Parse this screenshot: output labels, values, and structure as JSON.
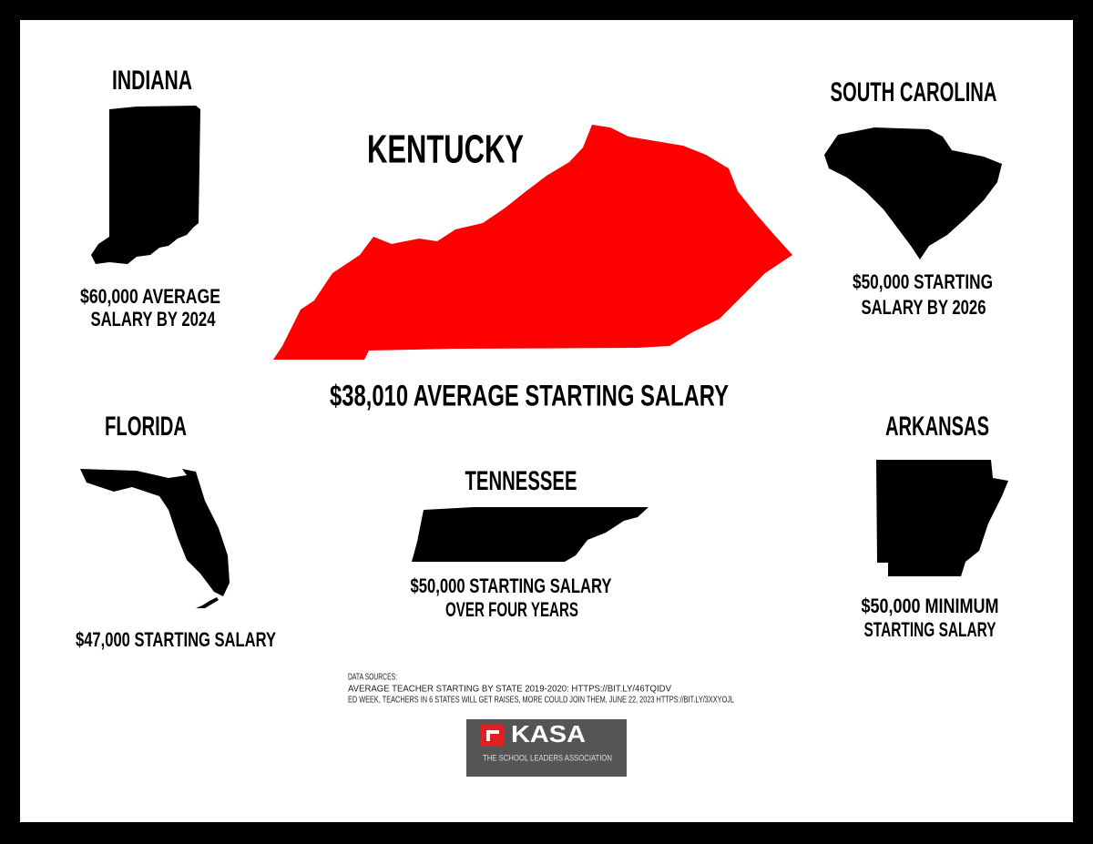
{
  "states": [
    {
      "name": "INDIANA",
      "caption": [
        "$60,000 AVERAGE",
        "SALARY BY 2024"
      ]
    },
    {
      "name": "KENTUCKY",
      "caption": [
        "$38,010 AVERAGE STARTING SALARY"
      ]
    },
    {
      "name": "SOUTH CAROLINA",
      "caption": [
        "$50,000 STARTING",
        "SALARY BY 2026"
      ]
    },
    {
      "name": "FLORIDA",
      "caption": [
        "$47,000 STARTING SALARY"
      ]
    },
    {
      "name": "TENNESSEE",
      "caption": [
        "$50,000 STARTING SALARY",
        "OVER FOUR YEARS"
      ]
    },
    {
      "name": "ARKANSAS",
      "caption": [
        "$50,000 MINIMUM",
        "STARTING SALARY"
      ]
    }
  ],
  "sources": {
    "heading": "DATA SOURCES:",
    "lines": [
      "AVERAGE TEACHER STARTING BY STATE 2019-2020: HTTPS://BIT.LY/46TQIDV",
      "ED WEEK, TEACHERS IN 6 STATES WILL GET RAISES, MORE COULD JOIN THEM, JUNE 22, 2023 HTTPS://BIT.LY/3XXYOJL"
    ]
  },
  "logo": {
    "name": "KASA",
    "tagline": "THE SCHOOL LEADERS ASSOCIATION"
  }
}
